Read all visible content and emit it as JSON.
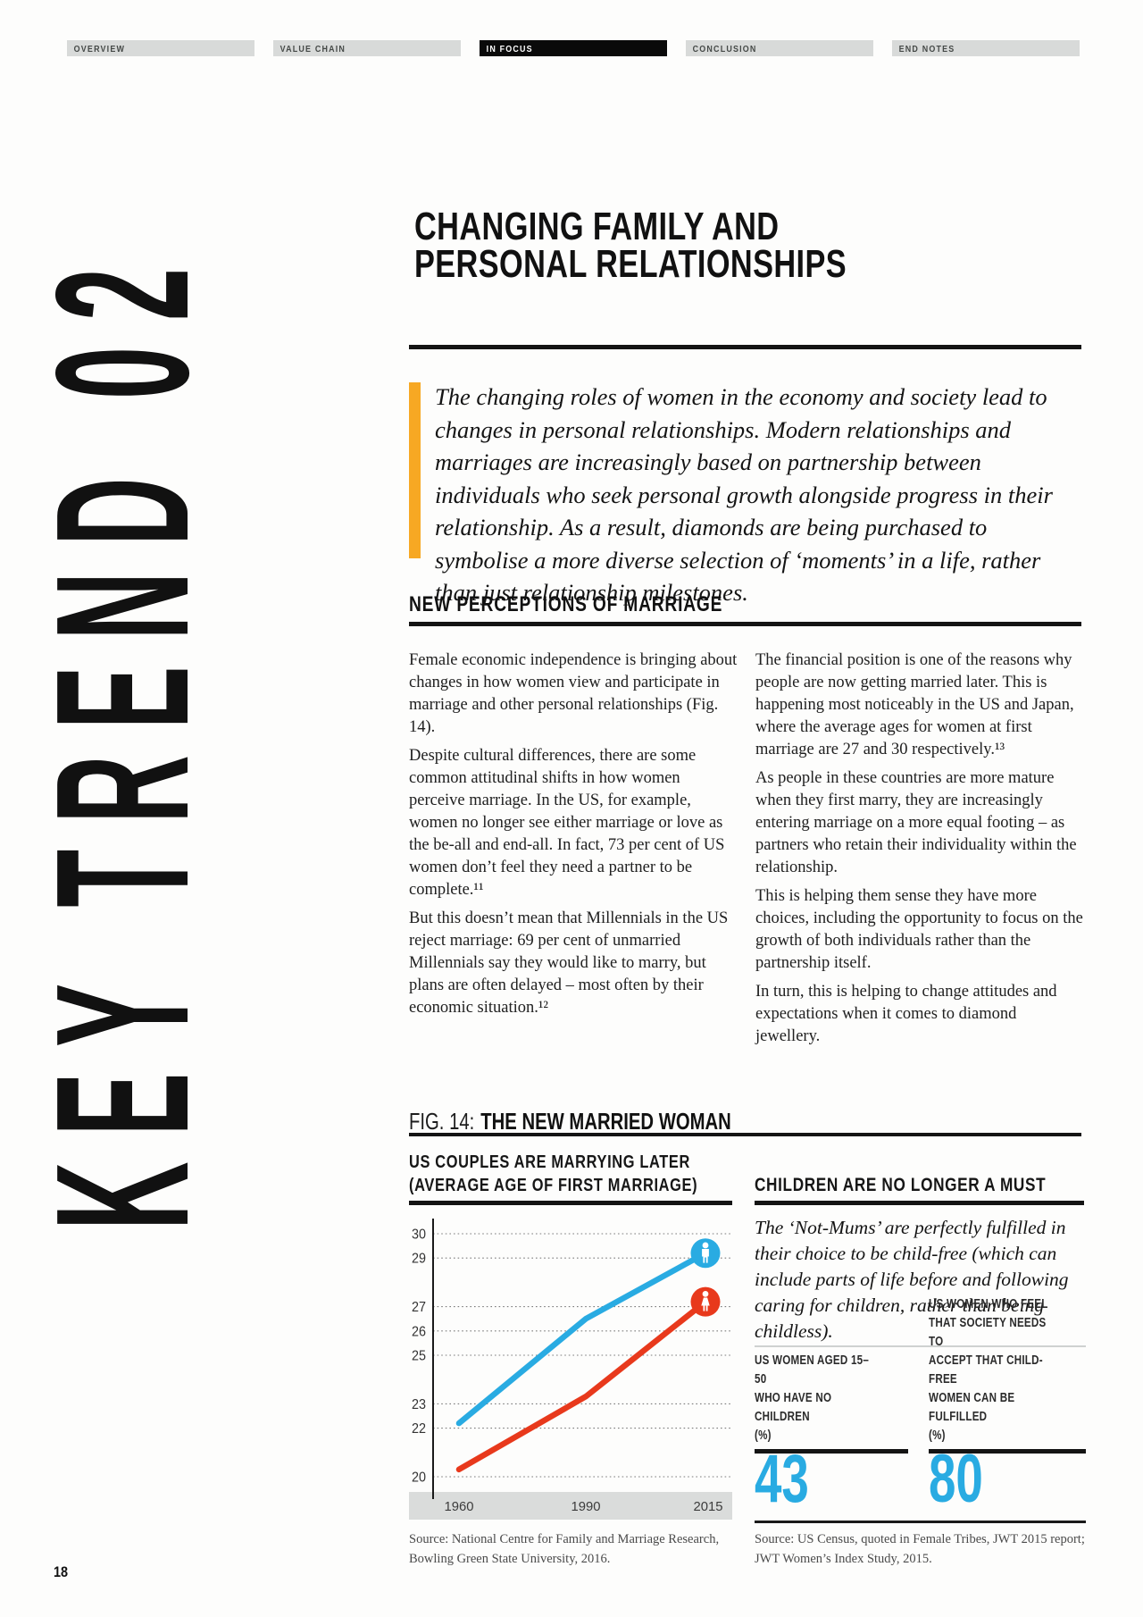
{
  "nav": {
    "tabs": [
      {
        "label": "OVERVIEW",
        "active": false
      },
      {
        "label": "VALUE CHAIN",
        "active": false
      },
      {
        "label": "IN FOCUS",
        "active": true
      },
      {
        "label": "CONCLUSION",
        "active": false
      },
      {
        "label": "END NOTES",
        "active": false
      }
    ]
  },
  "sidebar": {
    "vertical_label": "KEY TREND 02"
  },
  "page": {
    "number": "18"
  },
  "article": {
    "title_line1": "CHANGING FAMILY AND",
    "title_line2": "PERSONAL RELATIONSHIPS",
    "intro": "The changing roles of women in the economy and society lead to changes in personal relationships. Modern relationships and marriages are increasingly based on partnership between individuals who seek personal growth alongside progress in their relationship. As a result, diamonds are being purchased to symbolise a more diverse selection of ‘moments’ in a life, rather than just relationship milestones.",
    "section_heading": "NEW PERCEPTIONS OF MARRIAGE",
    "col_left": [
      "Female economic independence is bringing about changes in how women view and participate in marriage and other personal relationships (Fig. 14).",
      "Despite cultural differences, there are some common attitudinal shifts in how women perceive marriage. In the US, for example, women no longer see either marriage or love as the be-all and end-all. In fact, 73 per cent of US women don’t feel they need a partner to be complete.¹¹",
      "But this doesn’t mean that Millennials in the US reject marriage: 69 per cent of unmarried Millennials say they would like to marry, but plans are often delayed – most often by their economic situation.¹²"
    ],
    "col_right": [
      "The financial position is one of the reasons why people are now getting married later. This is happening most noticeably in the US and Japan, where the average ages for women at first marriage are 27 and 30 respectively.¹³",
      "As people in these countries are more mature when they first marry, they are increasingly entering marriage on a more equal footing – as partners who retain their individuality within the relationship.",
      "This is helping them sense they have more choices, including the opportunity to focus on the growth of both individuals rather than the partnership itself.",
      "In turn, this is helping to change attitudes and expectations when it comes to diamond jewellery."
    ]
  },
  "figure": {
    "label": "FIG. 14:",
    "title": "THE NEW MARRIED WOMAN",
    "left_chart": {
      "heading_line1": "US COUPLES ARE MARRYING LATER",
      "heading_line2": "(AVERAGE AGE OF FIRST MARRIAGE)",
      "source": "Source: National Centre for Family and Marriage Research,\nBowling Green State University, 2016."
    },
    "right_panel": {
      "heading": "CHILDREN ARE NO LONGER A MUST",
      "intro": "The ‘Not-Mums’ are perfectly fulfilled in their choice to be child-free (which can include parts of life before and following caring for children, rather than being childless).",
      "stats": [
        {
          "label_lines": "US WOMEN AGED 15–50\nWHO HAVE NO CHILDREN\n(%)",
          "value": "43"
        },
        {
          "label_lines": "US WOMEN WHO FEEL\nTHAT SOCIETY NEEDS TO\nACCEPT THAT CHILD-FREE\nWOMEN CAN BE FULFILLED\n(%)",
          "value": "80"
        }
      ],
      "source": "Source: US Census, quoted in Female Tribes, JWT 2015 report;\nJWT Women’s Index Study, 2015."
    }
  },
  "chart_data": {
    "type": "line",
    "title": "US COUPLES ARE MARRYING LATER (AVERAGE AGE OF FIRST MARRIAGE)",
    "x": [
      "1960",
      "1990",
      "2015"
    ],
    "series": [
      {
        "name": "men",
        "icon": "male",
        "color": "#29abe2",
        "values": [
          22.2,
          26.5,
          29.2
        ]
      },
      {
        "name": "women",
        "icon": "female",
        "color": "#e8391c",
        "values": [
          20.3,
          23.3,
          27.2
        ]
      }
    ],
    "yticks": [
      30,
      29,
      27,
      26,
      25,
      23,
      22,
      20
    ],
    "ylim": [
      19.5,
      30.5
    ],
    "xlabel": "",
    "ylabel": "Average age at first marriage",
    "grid": "dotted-horizontal",
    "legend": "none"
  },
  "colors": {
    "accent_orange": "#f7a823",
    "accent_blue": "#29abe2",
    "accent_red": "#e8391c",
    "tab_bg": "#d8dad9",
    "tab_active_bg": "#0a0a0a",
    "band_bg": "#dadcdb",
    "rule": "#141414"
  }
}
